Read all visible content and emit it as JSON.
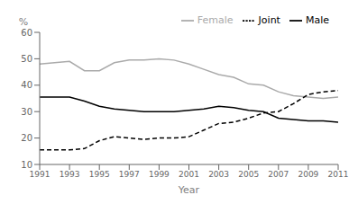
{
  "chart_data": {
    "type": "line",
    "xlabel": "Year",
    "ylabel": "%",
    "x": [
      1991,
      1992,
      1993,
      1994,
      1995,
      1996,
      1997,
      1998,
      1999,
      2000,
      2001,
      2002,
      2003,
      2004,
      2005,
      2006,
      2007,
      2008,
      2009,
      2010,
      2011
    ],
    "series": [
      {
        "name": "Male",
        "color": "#000000",
        "line_style": "solid",
        "values": [
          35.5,
          35.5,
          35.5,
          34.0,
          32.0,
          31.0,
          30.5,
          30.0,
          30.0,
          30.0,
          30.5,
          31.0,
          32.0,
          31.5,
          30.5,
          30.0,
          27.5,
          27.0,
          26.5,
          26.5,
          26.0
        ]
      },
      {
        "name": "Female",
        "color": "#aaaaaa",
        "line_style": "solid",
        "values": [
          48.0,
          48.5,
          49.0,
          45.5,
          45.5,
          48.5,
          49.5,
          49.5,
          50.0,
          49.5,
          48.0,
          46.0,
          44.0,
          43.0,
          40.5,
          40.0,
          37.5,
          36.0,
          35.5,
          35.0,
          35.5
        ]
      },
      {
        "name": "Joint",
        "color": "#000000",
        "line_style": "dashed",
        "values": [
          15.5,
          15.5,
          15.5,
          16.0,
          19.0,
          20.5,
          20.0,
          19.5,
          20.0,
          20.0,
          20.5,
          23.0,
          25.5,
          26.0,
          27.5,
          29.5,
          30.0,
          33.0,
          36.5,
          37.5,
          38.0
        ]
      }
    ],
    "xlim": [
      1991,
      2011
    ],
    "xticks": [
      1991,
      1993,
      1995,
      1997,
      1999,
      2001,
      2003,
      2005,
      2007,
      2009,
      2011
    ],
    "ylim": [
      10,
      60
    ],
    "yticks": [
      10,
      20,
      30,
      40,
      50,
      60
    ],
    "legend": "upper right",
    "grid": false
  }
}
